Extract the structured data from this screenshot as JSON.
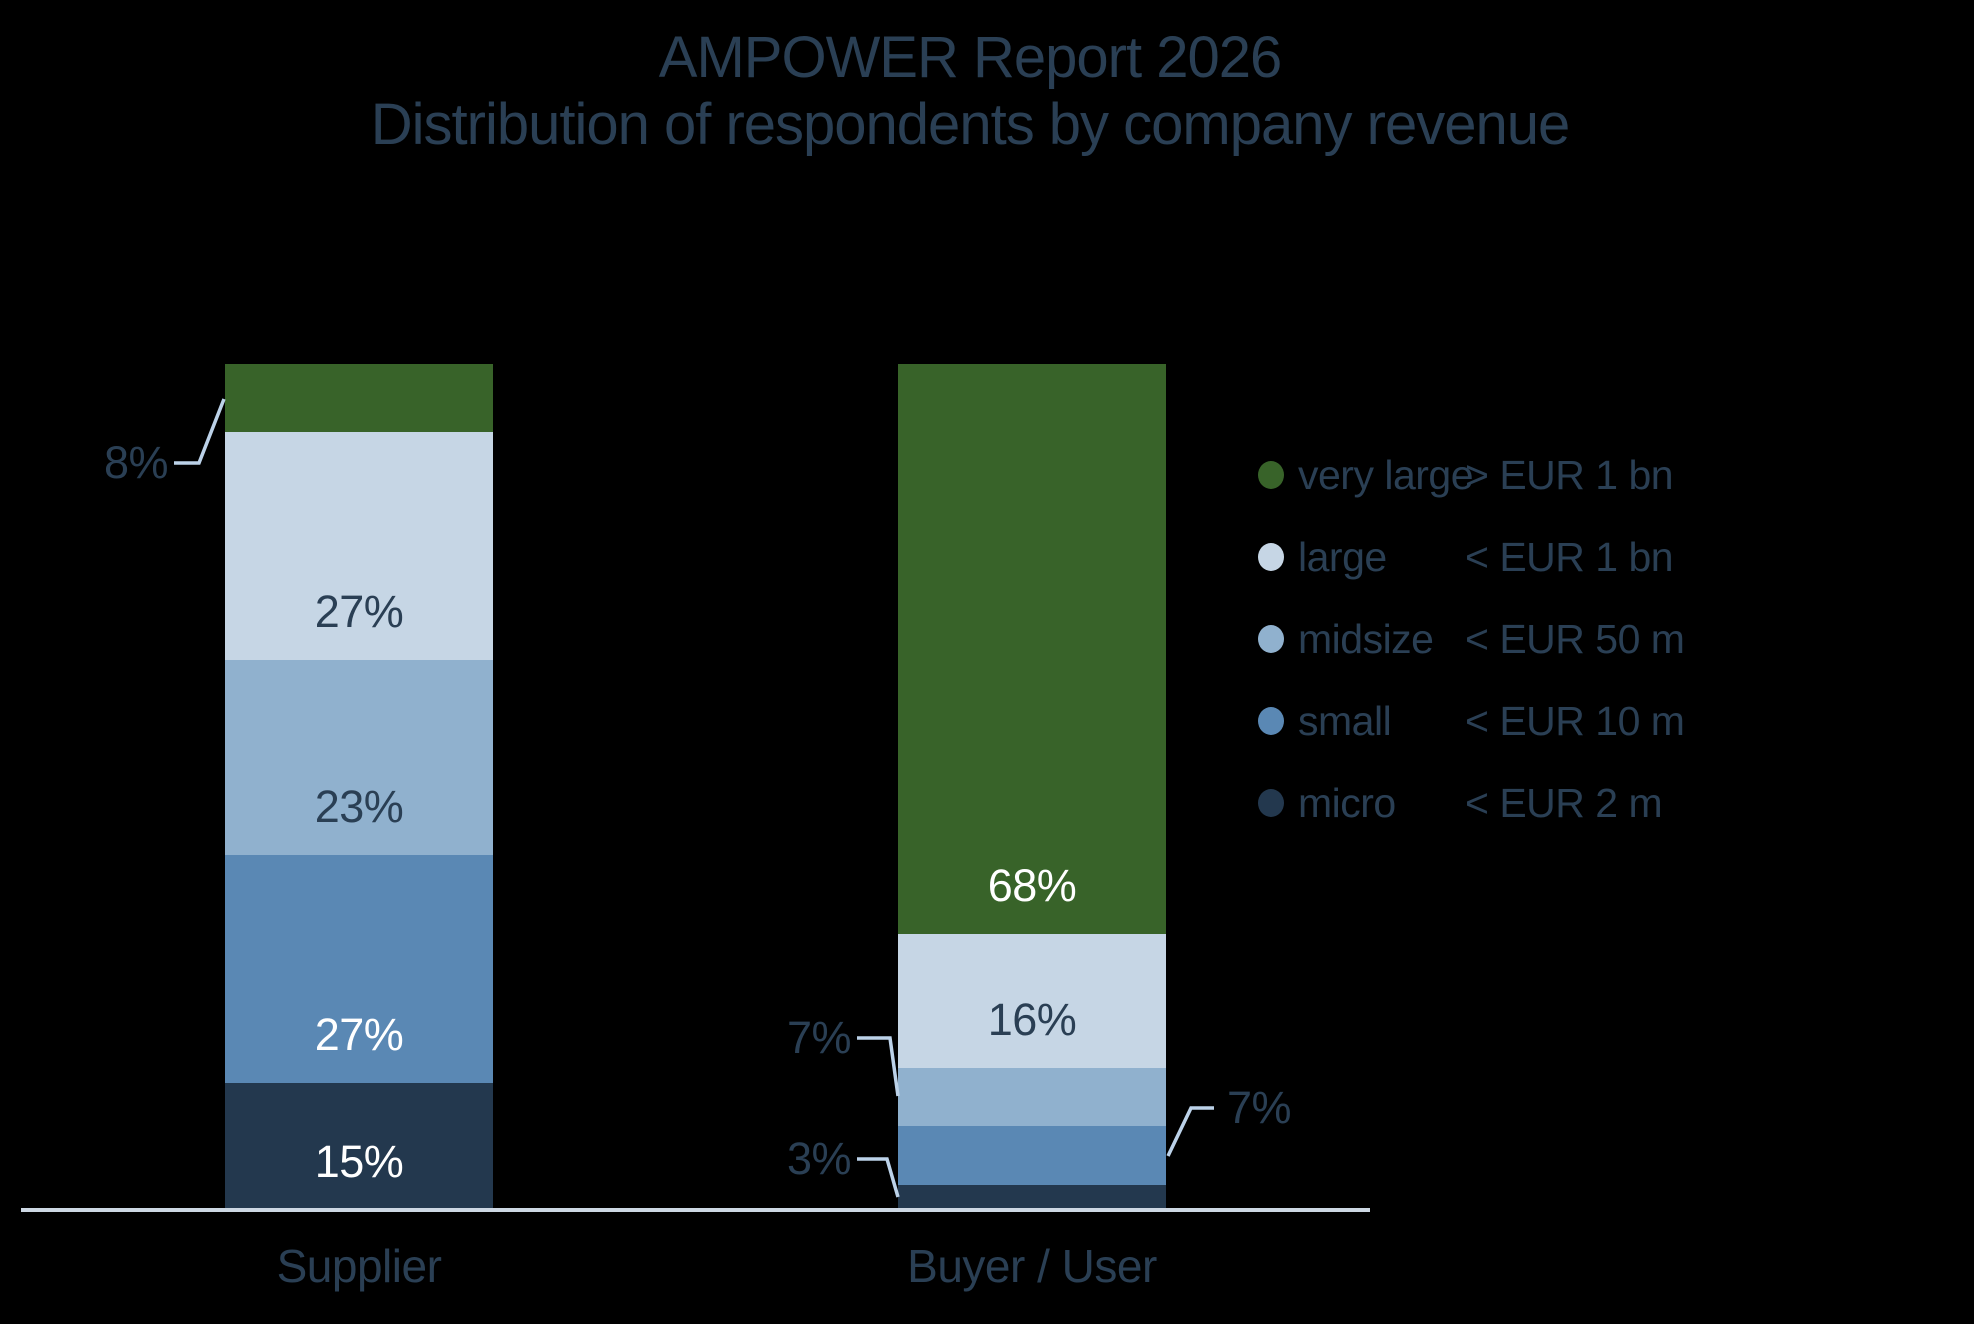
{
  "title": {
    "line1": "AMPOWER Report 2026",
    "line2": "Distribution of respondents by company revenue"
  },
  "colors": {
    "background": "#000000",
    "text_dark": "#2A3F54",
    "text_light": "#FFFFFF",
    "axis_line": "#CDD7E3",
    "callout_line": "#BCD2E9",
    "series": {
      "very large": "#386329",
      "large": "#C6D6E5",
      "midsize": "#90B1CE",
      "small": "#5A88B4",
      "micro": "#23384E"
    }
  },
  "legend": {
    "position": "right",
    "items": [
      {
        "label": "very large",
        "threshold": "> EUR 1 bn",
        "color_key": "very large"
      },
      {
        "label": "large",
        "threshold": "< EUR 1 bn",
        "color_key": "large"
      },
      {
        "label": "midsize",
        "threshold": "< EUR 50 m",
        "color_key": "midsize"
      },
      {
        "label": "small",
        "threshold": "< EUR 10 m",
        "color_key": "small"
      },
      {
        "label": "micro",
        "threshold": "< EUR 2 m",
        "color_key": "micro"
      }
    ]
  },
  "chart_data": {
    "type": "bar",
    "stacked": true,
    "unit": "%",
    "title": "AMPOWER Report 2026 — Distribution of respondents by company revenue",
    "categories": [
      "Supplier",
      "Buyer / User"
    ],
    "series": [
      {
        "name": "very large",
        "values": [
          8,
          68
        ]
      },
      {
        "name": "large",
        "values": [
          27,
          16
        ]
      },
      {
        "name": "midsize",
        "values": [
          23,
          7
        ]
      },
      {
        "name": "small",
        "values": [
          27,
          7
        ]
      },
      {
        "name": "micro",
        "values": [
          15,
          3
        ]
      }
    ],
    "ylim": [
      0,
      100
    ],
    "grid": false,
    "legend_position": "right",
    "labels": [
      {
        "bar": 0,
        "segment": "very large",
        "text": "8%",
        "placement": "callout-left",
        "color": "dark"
      },
      {
        "bar": 0,
        "segment": "large",
        "text": "27%",
        "placement": "inside",
        "color": "dark"
      },
      {
        "bar": 0,
        "segment": "midsize",
        "text": "23%",
        "placement": "inside",
        "color": "dark"
      },
      {
        "bar": 0,
        "segment": "small",
        "text": "27%",
        "placement": "inside",
        "color": "light"
      },
      {
        "bar": 0,
        "segment": "micro",
        "text": "15%",
        "placement": "inside",
        "color": "light"
      },
      {
        "bar": 1,
        "segment": "very large",
        "text": "68%",
        "placement": "inside",
        "color": "light"
      },
      {
        "bar": 1,
        "segment": "large",
        "text": "16%",
        "placement": "inside",
        "color": "dark"
      },
      {
        "bar": 1,
        "segment": "midsize",
        "text": "7%",
        "placement": "callout-left",
        "color": "dark"
      },
      {
        "bar": 1,
        "segment": "small",
        "text": "7%",
        "placement": "callout-right",
        "color": "dark"
      },
      {
        "bar": 1,
        "segment": "micro",
        "text": "3%",
        "placement": "callout-left",
        "color": "dark"
      }
    ]
  }
}
